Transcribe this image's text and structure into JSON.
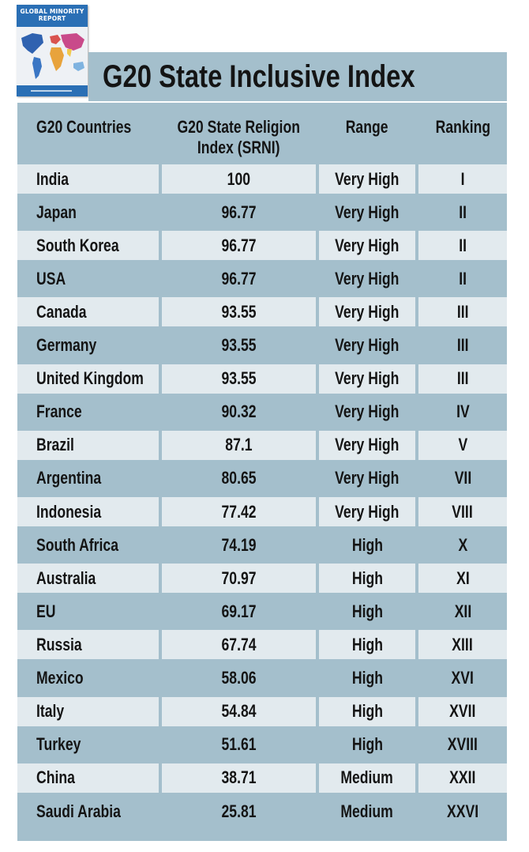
{
  "cover": {
    "title_line1": "GLOBAL MINORITY",
    "title_line2": "REPORT"
  },
  "colors": {
    "header_band": "#a4bfcc",
    "row_light": "#e2eaee",
    "row_dark": "#a4bfcc",
    "cover_blue": "#2a6fb5",
    "text": "#141414"
  },
  "chart_data": {
    "type": "table",
    "title": "G20 State Inclusive Index",
    "columns": [
      "G20 Countries",
      "G20 State Religion\nIndex (SRNI)",
      "Range",
      "Ranking"
    ],
    "rows": [
      [
        "India",
        "100",
        "Very High",
        "I"
      ],
      [
        "Japan",
        "96.77",
        "Very High",
        "II"
      ],
      [
        "South Korea",
        "96.77",
        "Very High",
        "II"
      ],
      [
        "USA",
        "96.77",
        "Very High",
        "II"
      ],
      [
        "Canada",
        "93.55",
        "Very High",
        "III"
      ],
      [
        "Germany",
        "93.55",
        "Very High",
        "III"
      ],
      [
        "United Kingdom",
        "93.55",
        "Very High",
        "III"
      ],
      [
        "France",
        "90.32",
        "Very High",
        "IV"
      ],
      [
        "Brazil",
        "87.1",
        "Very High",
        "V"
      ],
      [
        "Argentina",
        "80.65",
        "Very High",
        "VII"
      ],
      [
        "Indonesia",
        "77.42",
        "Very High",
        "VIII"
      ],
      [
        "South Africa",
        "74.19",
        "High",
        "X"
      ],
      [
        "Australia",
        "70.97",
        "High",
        "XI"
      ],
      [
        "EU",
        "69.17",
        "High",
        "XII"
      ],
      [
        "Russia",
        "67.74",
        "High",
        "XIII"
      ],
      [
        "Mexico",
        "58.06",
        "High",
        "XVI"
      ],
      [
        "Italy",
        "54.84",
        "High",
        "XVII"
      ],
      [
        "Turkey",
        "51.61",
        "High",
        "XVIII"
      ],
      [
        "China",
        "38.71",
        "Medium",
        "XXII"
      ],
      [
        "Saudi Arabia",
        "25.81",
        "Medium",
        "XXVI"
      ]
    ]
  }
}
